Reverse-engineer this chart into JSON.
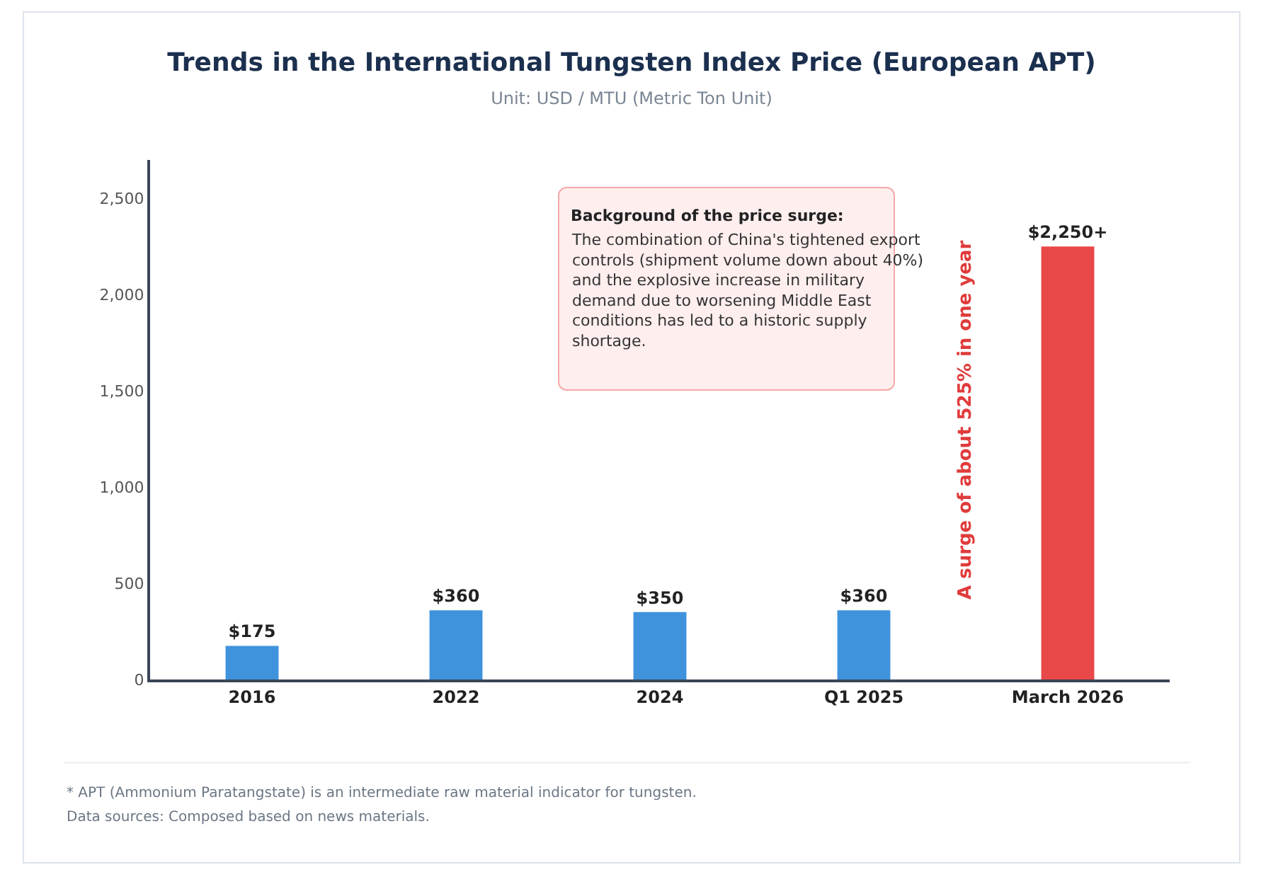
{
  "chart_data": {
    "type": "bar",
    "title": "Trends in the International Tungsten Index Price (European APT)",
    "subtitle": "Unit: USD / MTU (Metric Ton Unit)",
    "categories": [
      "2016",
      "2022",
      "2024",
      "Q1 2025",
      "March 2026"
    ],
    "values": [
      175,
      360,
      350,
      360,
      2250
    ],
    "colors": [
      "#3f93dd",
      "#3f93dd",
      "#3f93dd",
      "#3f93dd",
      "#e94848"
    ],
    "value_labels": [
      "$175",
      "$360",
      "$350",
      "$360",
      "$2,250+"
    ],
    "ylim": [
      0,
      2700
    ],
    "yticks": [
      0,
      {
        "value": 500,
        "label": "500"
      },
      {
        "value": 1000,
        "label": "1,000"
      },
      {
        "value": 1500,
        "label": "1,500"
      },
      {
        "value": 2000,
        "label": "2,000"
      },
      {
        "value": 2500,
        "label": "2,500"
      }
    ],
    "grid": false,
    "annotations": [
      "A surge of about 525% in one year",
      "Background of the price surge:",
      "The combination of China's tightened export controls (shipment volume down about 40%) and the explosive increase in military demand due to worsening Middle East conditions has led to a historic supply shortage.",
      "* APT (Ammonium Paratangstate) is an intermediate raw material indicator for tungsten.",
      "Data sources: Composed based on news materials."
    ]
  }
}
